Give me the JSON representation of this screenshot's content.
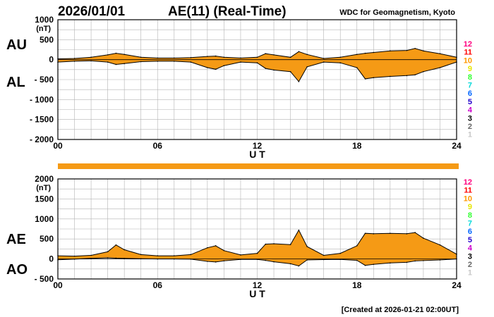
{
  "header": {
    "date": "2026/01/01",
    "title": "AE(11) (Real-Time)",
    "source": "WDC for Geomagnetism, Kyoto"
  },
  "footer": {
    "created": "[Created at 2026-01-21 02:00UT]"
  },
  "colors": {
    "fill": "#f59a15",
    "stroke": "#000000",
    "grid": "#b3b3b3"
  },
  "station_legend": [
    {
      "label": "12",
      "color": "#ff0080"
    },
    {
      "label": "11",
      "color": "#ff0000"
    },
    {
      "label": "10",
      "color": "#ff9900"
    },
    {
      "label": "9",
      "color": "#e6e600"
    },
    {
      "label": "8",
      "color": "#33ff33"
    },
    {
      "label": "7",
      "color": "#00d9d9"
    },
    {
      "label": "6",
      "color": "#0066ff"
    },
    {
      "label": "5",
      "color": "#2200cc"
    },
    {
      "label": "4",
      "color": "#cc00cc"
    },
    {
      "label": "3",
      "color": "#000000"
    },
    {
      "label": "2",
      "color": "#666666"
    },
    {
      "label": "1",
      "color": "#c8c8c8"
    }
  ],
  "chart_data": [
    {
      "type": "area",
      "id": "au_al",
      "upper_label": "AU",
      "lower_label": "AL",
      "unit": "(nT)",
      "xlabel": "U T",
      "ylim": [
        -2000,
        1000
      ],
      "yticks": [
        1000,
        500,
        0,
        -500,
        -1000,
        -1500,
        -2000
      ],
      "ytick_labels": [
        "1000",
        "500",
        "0",
        "- 500",
        "- 1000",
        "- 1500",
        "- 2000"
      ],
      "xlim": [
        0,
        24
      ],
      "xticks": [
        0,
        6,
        12,
        18,
        24
      ],
      "xtick_labels": [
        "00",
        "06",
        "12",
        "18",
        "24"
      ],
      "x": [
        0,
        1,
        2,
        3,
        3.5,
        4,
        5,
        6,
        7,
        8,
        9,
        9.5,
        10,
        11,
        12,
        12.5,
        13,
        14,
        14.5,
        15,
        16,
        17,
        18,
        18.5,
        19,
        20,
        21,
        21.5,
        22,
        23,
        24
      ],
      "series": [
        {
          "name": "AU",
          "values": [
            20,
            30,
            60,
            120,
            160,
            130,
            60,
            40,
            40,
            50,
            80,
            90,
            60,
            40,
            60,
            150,
            120,
            60,
            200,
            130,
            30,
            60,
            130,
            160,
            180,
            220,
            230,
            280,
            220,
            150,
            60
          ]
        },
        {
          "name": "AL",
          "values": [
            -60,
            -40,
            -30,
            -60,
            -120,
            -100,
            -50,
            -40,
            -40,
            -60,
            -200,
            -240,
            -150,
            -60,
            -80,
            -220,
            -260,
            -300,
            -550,
            -180,
            -60,
            -80,
            -200,
            -480,
            -450,
            -420,
            -400,
            -380,
            -300,
            -200,
            -60
          ]
        }
      ]
    },
    {
      "type": "area",
      "id": "ae_ao",
      "upper_label": "AE",
      "lower_label": "AO",
      "unit": "(nT)",
      "xlabel": "U T",
      "ylim": [
        -500,
        2000
      ],
      "yticks": [
        2000,
        1500,
        1000,
        500,
        0,
        -500
      ],
      "ytick_labels": [
        "2000",
        "1500",
        "1000",
        "500",
        "0",
        "- 500"
      ],
      "xlim": [
        0,
        24
      ],
      "xticks": [
        0,
        6,
        12,
        18,
        24
      ],
      "xtick_labels": [
        "00",
        "06",
        "12",
        "18",
        "24"
      ],
      "x": [
        0,
        1,
        2,
        3,
        3.5,
        4,
        5,
        6,
        7,
        8,
        9,
        9.5,
        10,
        11,
        12,
        12.5,
        13,
        14,
        14.5,
        15,
        16,
        17,
        18,
        18.5,
        19,
        20,
        21,
        21.5,
        22,
        23,
        24
      ],
      "series": [
        {
          "name": "AE",
          "values": [
            80,
            70,
            90,
            180,
            350,
            230,
            110,
            80,
            80,
            110,
            280,
            330,
            210,
            100,
            140,
            370,
            380,
            360,
            720,
            310,
            90,
            140,
            330,
            640,
            630,
            640,
            630,
            660,
            520,
            350,
            120
          ]
        },
        {
          "name": "AO",
          "values": [
            -20,
            -5,
            15,
            30,
            20,
            15,
            5,
            0,
            0,
            -5,
            -60,
            -75,
            -45,
            -10,
            -10,
            -35,
            -70,
            -120,
            -175,
            -25,
            -15,
            -10,
            -35,
            -160,
            -135,
            -100,
            -85,
            -50,
            -40,
            -25,
            0
          ]
        }
      ]
    }
  ]
}
